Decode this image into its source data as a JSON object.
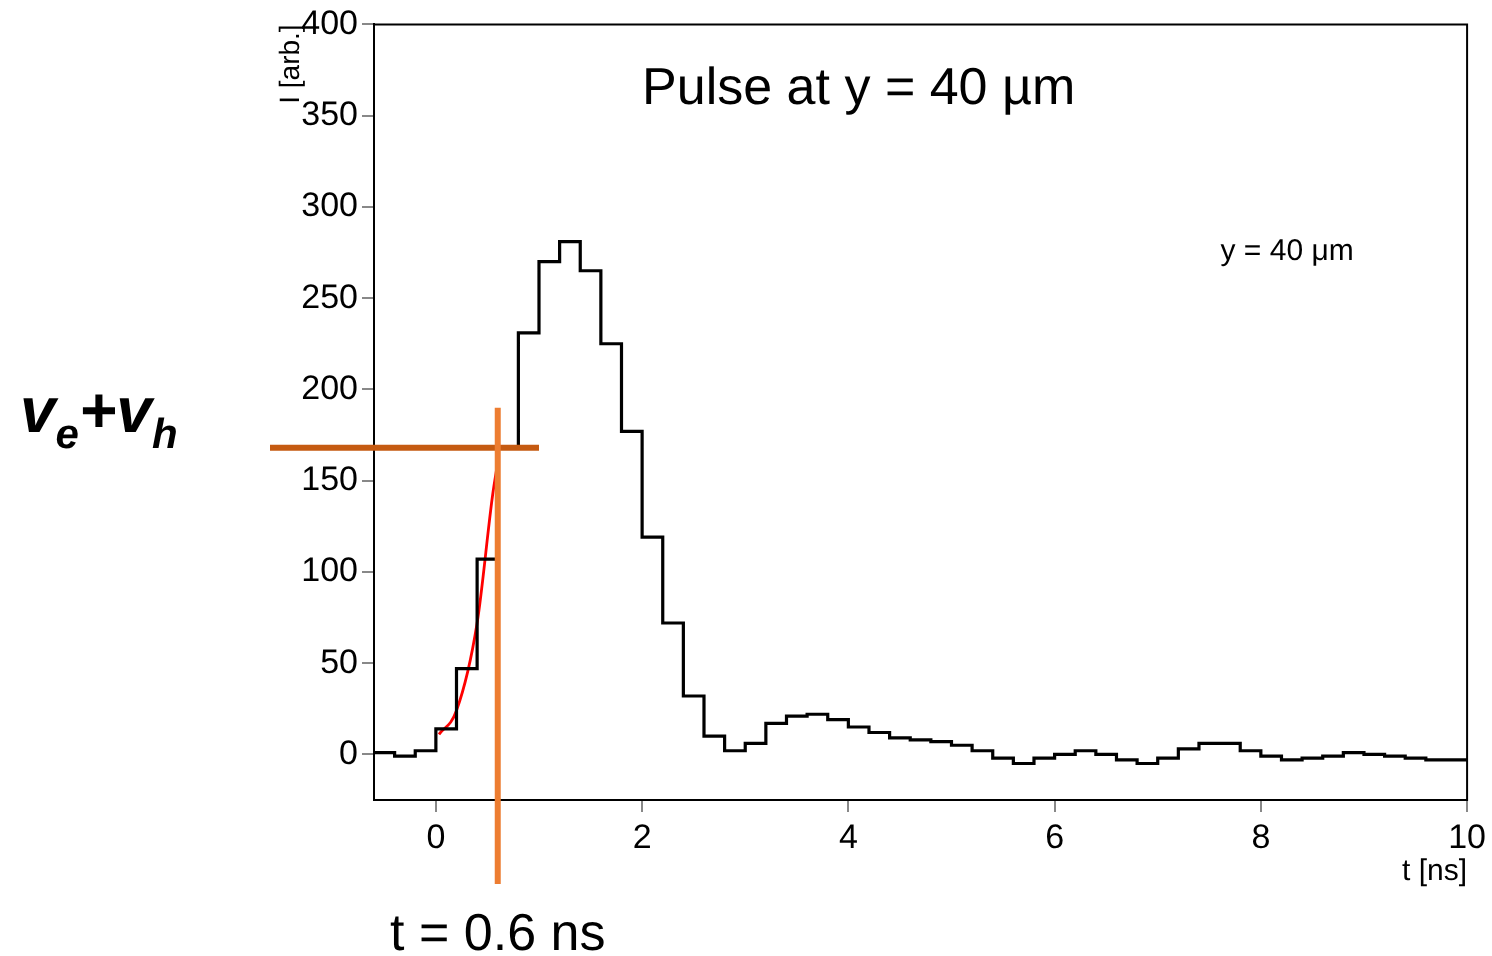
{
  "chart_data": {
    "type": "histogram",
    "title": "Pulse at y = 40 µm",
    "xlabel": "t [ns]",
    "ylabel": "I [arb.]",
    "bins": [
      -0.6,
      -0.4,
      -0.2,
      0,
      0.2,
      0.4,
      0.6,
      0.8,
      1.0,
      1.2,
      1.4,
      1.6,
      1.8,
      2.0,
      2.2,
      2.4,
      2.6,
      2.8,
      3.0,
      3.2,
      3.4,
      3.6,
      3.8,
      4.0,
      4.2,
      4.4,
      4.6,
      4.8,
      5.0,
      5.2,
      5.4,
      5.6,
      5.8,
      6.0,
      6.2,
      6.4,
      6.6,
      6.8,
      7.0,
      7.2,
      7.4,
      7.6,
      7.8,
      8.0,
      8.2,
      8.4,
      8.6,
      8.8,
      9.0,
      9.2,
      9.4,
      9.6,
      9.8,
      10.0
    ],
    "values": [
      1,
      -1,
      2,
      14,
      47,
      107,
      168,
      231,
      270,
      281,
      265,
      225,
      177,
      119,
      72,
      32,
      10,
      2,
      6,
      17,
      21,
      22,
      19,
      15,
      12,
      9,
      8,
      7,
      5,
      2,
      -2,
      -5,
      -2,
      0,
      2,
      0,
      -3,
      -5,
      -2,
      3,
      6,
      6,
      2,
      -1,
      -3,
      -2,
      -1,
      1,
      0,
      -1,
      -2,
      -3,
      -3
    ],
    "color": "#000000",
    "series": [
      {
        "type": "line",
        "x": [
          0.03,
          0.2,
          0.4,
          0.55,
          0.6
        ],
        "values": [
          11,
          24,
          72,
          142,
          160
        ],
        "color": "#ff0000"
      }
    ],
    "xlim": [
      -0.6,
      10
    ],
    "xticks": [
      0,
      2,
      4,
      6,
      8,
      10
    ],
    "ylim": [
      -25,
      400
    ],
    "yticks": [
      0,
      50,
      100,
      150,
      200,
      250,
      300,
      350,
      400
    ],
    "grid": false,
    "legend": false,
    "ref_lines": [
      {
        "axis": "y",
        "value": 168,
        "label": "v$_{e}$+v$_{h}$",
        "color": "#c55a11"
      },
      {
        "axis": "x",
        "value": 0.6,
        "label": "t = 0.6 ns",
        "color": "#ed7d31"
      }
    ],
    "annotations": [
      "y = 40 μm"
    ]
  }
}
